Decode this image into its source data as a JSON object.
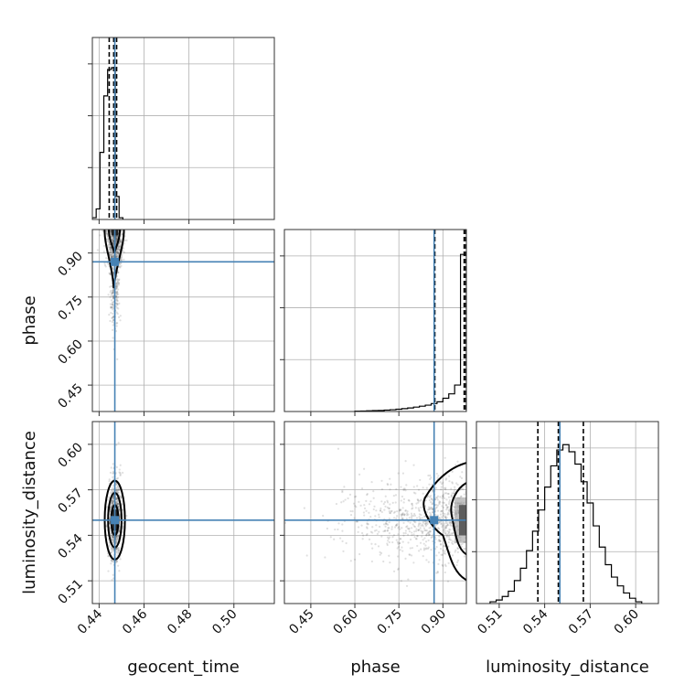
{
  "chart_data": {
    "type": "corner",
    "parameters": [
      "geocent_time",
      "phase",
      "luminosity_distance"
    ],
    "truths": {
      "geocent_time": 0.447,
      "phase": 0.87,
      "luminosity_distance": 0.55
    },
    "ranges": {
      "geocent_time": [
        0.437,
        0.518
      ],
      "phase": [
        0.36,
        0.98
      ],
      "luminosity_distance": [
        0.495,
        0.615
      ]
    },
    "ticks": {
      "geocent_time": [
        "0.44",
        "0.46",
        "0.48",
        "0.50"
      ],
      "phase": [
        "0.45",
        "0.60",
        "0.75",
        "0.90"
      ],
      "luminosity_distance": [
        "0.51",
        "0.54",
        "0.57",
        "0.60"
      ]
    },
    "quantiles": {
      "geocent_time": [
        0.4445,
        0.4465,
        0.4478
      ],
      "phase": [
        0.8725,
        0.9725,
        0.978
      ],
      "luminosity_distance": [
        0.5355,
        0.549,
        0.5655
      ]
    },
    "histograms": {
      "geocent_time": {
        "edges": [
          0.437,
          0.4387,
          0.4404,
          0.4421,
          0.4438,
          0.4455,
          0.4472,
          0.4489,
          0.4506
        ],
        "counts": [
          0.01,
          0.06,
          0.38,
          0.7,
          0.85,
          0.86,
          0.13,
          0.01
        ]
      },
      "phase": {
        "edges": [
          0.6,
          0.62,
          0.64,
          0.66,
          0.68,
          0.7,
          0.72,
          0.74,
          0.76,
          0.78,
          0.8,
          0.82,
          0.84,
          0.86,
          0.88,
          0.9,
          0.92,
          0.94,
          0.96,
          0.98
        ],
        "counts": [
          0.002,
          0.003,
          0.004,
          0.005,
          0.006,
          0.008,
          0.01,
          0.013,
          0.016,
          0.02,
          0.025,
          0.03,
          0.036,
          0.045,
          0.055,
          0.075,
          0.1,
          0.15,
          0.89
        ]
      },
      "luminosity_distance": {
        "edges": [
          0.504,
          0.508,
          0.512,
          0.516,
          0.52,
          0.524,
          0.528,
          0.532,
          0.536,
          0.54,
          0.544,
          0.548,
          0.552,
          0.556,
          0.56,
          0.564,
          0.568,
          0.572,
          0.576,
          0.58,
          0.584,
          0.588,
          0.592,
          0.596,
          0.6,
          0.604
        ],
        "counts": [
          0.01,
          0.02,
          0.04,
          0.07,
          0.13,
          0.2,
          0.3,
          0.41,
          0.53,
          0.66,
          0.78,
          0.87,
          0.9,
          0.86,
          0.79,
          0.69,
          0.57,
          0.44,
          0.32,
          0.22,
          0.15,
          0.1,
          0.06,
          0.03,
          0.01
        ]
      }
    },
    "grid": true
  }
}
